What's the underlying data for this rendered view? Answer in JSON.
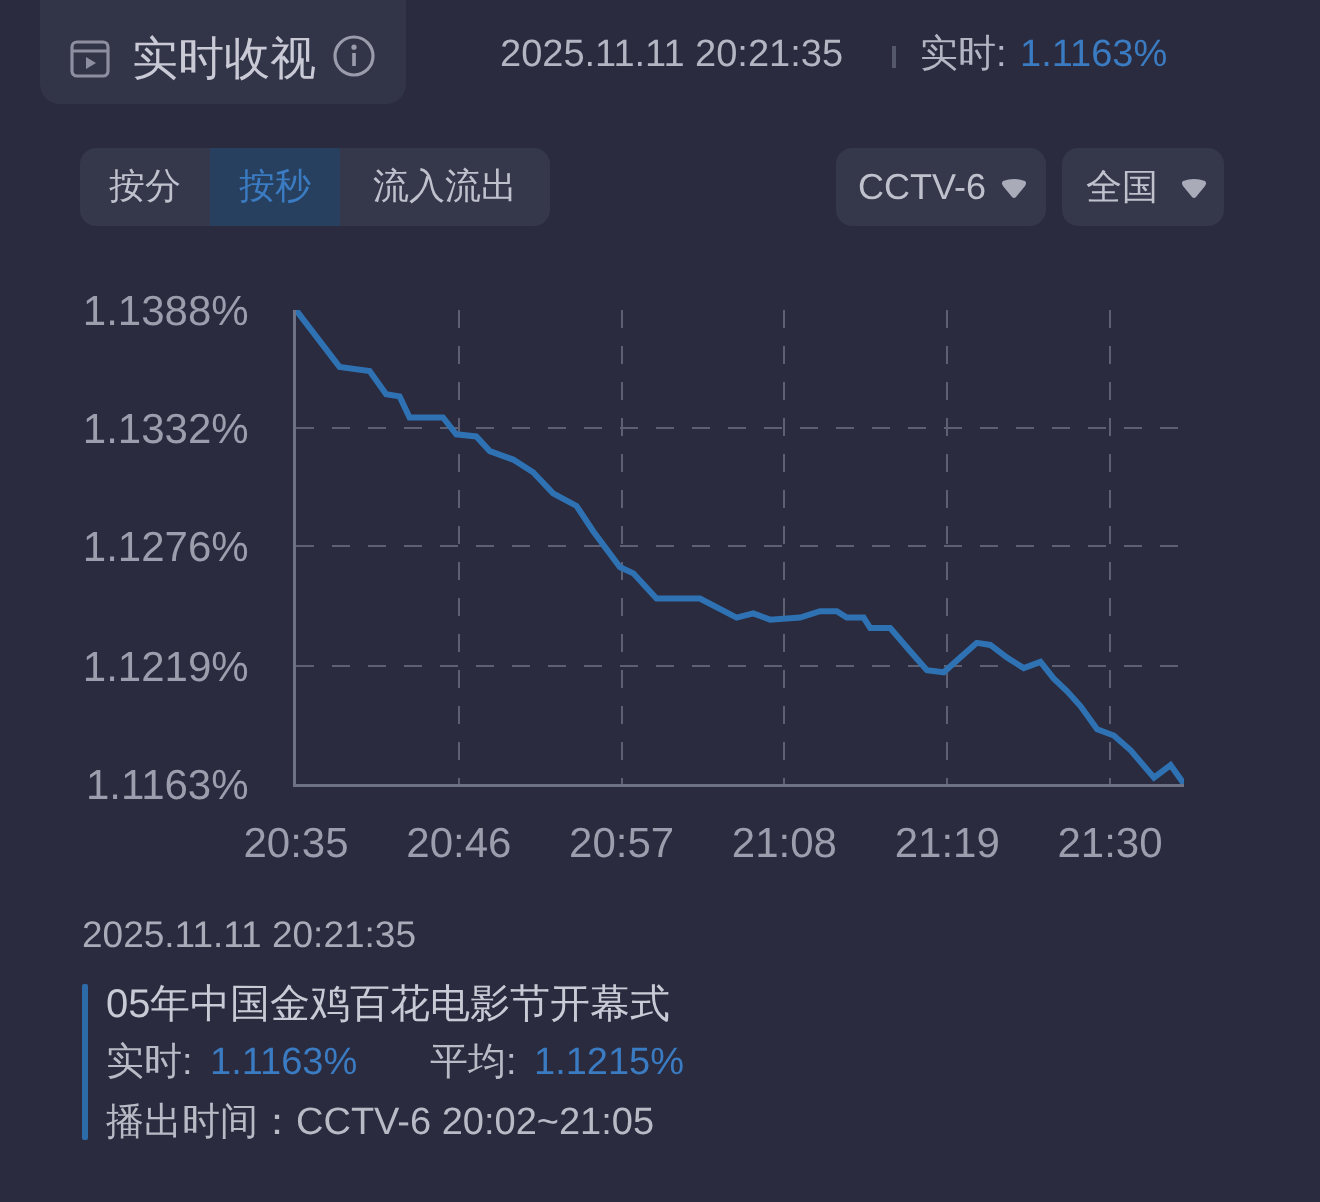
{
  "chart_data": {
    "type": "line",
    "title": "实时收视",
    "annotations": [
      "2025.11.11 20:21:35",
      "实时:",
      "1.1163%",
      "按分",
      "按秒",
      "流入流出",
      "CCTV-6",
      "全国",
      "2025.11.11 20:21:35",
      "05年中国金鸡百花电影节开幕式",
      "实时:",
      "1.1163%",
      "平均:",
      "1.1215%",
      "播出时间：CCTV-6 20:02~21:05"
    ],
    "x": [
      20.5833,
      20.6323,
      20.6662,
      20.6848,
      20.7,
      20.7112,
      20.7488,
      20.7638,
      20.7863,
      20.8015,
      20.8278,
      20.8503,
      20.8728,
      20.8992,
      20.918,
      20.948,
      20.9632,
      20.9893,
      21.0382,
      21.0795,
      21.0983,
      21.1172,
      21.151,
      21.1735,
      21.1923,
      21.2035,
      21.2225,
      21.23,
      21.2525,
      21.275,
      21.2938,
      21.3127,
      21.3313,
      21.35,
      21.3652,
      21.384,
      21.4028,
      21.4217,
      21.4367,
      21.4517,
      21.4667,
      21.4855,
      21.5043,
      21.5232,
      21.5495,
      21.5682,
      21.5833
    ],
    "values": [
      1.1388,
      1.1361,
      1.1359,
      1.1348,
      1.1347,
      1.1337,
      1.1337,
      1.1329,
      1.1328,
      1.1321,
      1.1317,
      1.1311,
      1.1301,
      1.1295,
      1.1283,
      1.1266,
      1.1263,
      1.1251,
      1.1251,
      1.1242,
      1.1244,
      1.1241,
      1.1242,
      1.1245,
      1.1245,
      1.1242,
      1.1242,
      1.1237,
      1.1237,
      1.1226,
      1.1217,
      1.1216,
      1.1223,
      1.123,
      1.1229,
      1.1223,
      1.1218,
      1.1221,
      1.1213,
      1.1207,
      1.12,
      1.1189,
      1.1186,
      1.1179,
      1.1166,
      1.1172,
      1.1163
    ],
    "color": "#2f72b3",
    "line_style": "solid",
    "xlim": [
      20.5833,
      21.5833
    ],
    "xticks": [
      {
        "value": 20.5833,
        "label": "20:35"
      },
      {
        "value": 20.7667,
        "label": "20:46"
      },
      {
        "value": 20.95,
        "label": "20:57"
      },
      {
        "value": 21.1333,
        "label": "21:08"
      },
      {
        "value": 21.3167,
        "label": "21:19"
      },
      {
        "value": 21.5,
        "label": "21:30"
      }
    ],
    "ylim": [
      1.1163,
      1.1388
    ],
    "yticks": [
      {
        "value": 1.1163,
        "label": "1.1163%"
      },
      {
        "value": 1.1219,
        "label": "1.1219%"
      },
      {
        "value": 1.1276,
        "label": "1.1276%"
      },
      {
        "value": 1.1332,
        "label": "1.1332%"
      },
      {
        "value": 1.1388,
        "label": "1.1388%"
      }
    ],
    "grid": true
  }
}
